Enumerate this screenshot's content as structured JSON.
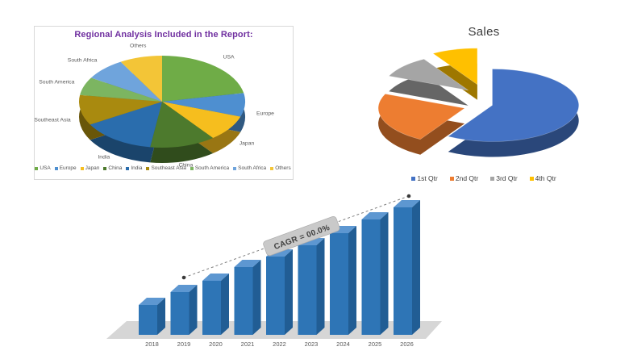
{
  "page": {
    "background": "#ffffff"
  },
  "regional_chart": {
    "title": "Regional Analysis Included in the Report:",
    "title_color": "#7030A0",
    "border_color": "#D9D9D9",
    "label_color": "#595959"
  },
  "sales_chart": {
    "title": "Sales",
    "title_color": "#3B3B3B"
  },
  "bar_chart": {
    "annotation": "CAGR = 00.0%",
    "axis_label_color": "#595959",
    "annotation_bg": "#C9C9C9",
    "annotation_text_color": "#3F3F3F"
  },
  "chart_data": [
    {
      "id": "regional-pie",
      "type": "pie",
      "style": "3d",
      "title": "Regional Analysis Included in the Report:",
      "legend_position": "bottom",
      "categories": [
        "USA",
        "Europe",
        "Japan",
        "China",
        "India",
        "Southeast Asia",
        "South America",
        "South Africa",
        "Others"
      ],
      "values": [
        22,
        8.3,
        9.2,
        12.8,
        14.4,
        10.6,
        6.4,
        8,
        8.3
      ],
      "value_units": "percent (estimated from slice angles)",
      "colors": [
        "#6FAC47",
        "#4E8FD0",
        "#F6BE1E",
        "#4D7A2D",
        "#2A6DAD",
        "#A98A0F",
        "#7CB561",
        "#6FA4DC",
        "#F3C537"
      ]
    },
    {
      "id": "sales-pie",
      "type": "pie",
      "style": "3d-exploded",
      "title": "Sales",
      "legend_position": "bottom",
      "categories": [
        "1st Qtr",
        "2nd Qtr",
        "3rd Qtr",
        "4th Qtr"
      ],
      "values": [
        8.2,
        3.2,
        1.4,
        1.2
      ],
      "colors": [
        "#4472C4",
        "#ED7D31",
        "#A5A5A5",
        "#FFC000"
      ]
    },
    {
      "id": "forecast-bar",
      "type": "bar",
      "style": "3d",
      "categories": [
        "2018",
        "2019",
        "2020",
        "2021",
        "2022",
        "2023",
        "2024",
        "2025",
        "2026"
      ],
      "values": [
        37,
        53,
        67,
        84,
        97,
        111,
        126,
        143,
        158
      ],
      "value_units": "relative height (no value axis shown)",
      "annotation": "CAGR = 00.0%",
      "colors": {
        "front": "#2E75B6",
        "top": "#5D97D1",
        "side": "#215D94",
        "floor": "#D6D6D6",
        "trend_line": "#7F7F7F",
        "trend_dot": "#3A3A3A"
      }
    }
  ]
}
